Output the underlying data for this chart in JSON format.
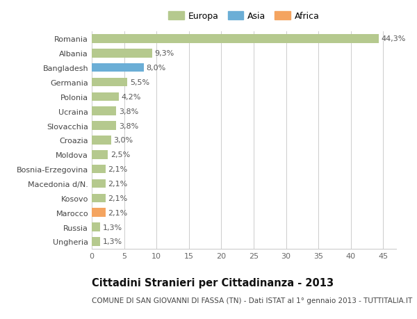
{
  "countries": [
    "Romania",
    "Albania",
    "Bangladesh",
    "Germania",
    "Polonia",
    "Ucraina",
    "Slovacchia",
    "Croazia",
    "Moldova",
    "Bosnia-Erzegovina",
    "Macedonia d/N.",
    "Kosovo",
    "Marocco",
    "Russia",
    "Ungheria"
  ],
  "values": [
    44.3,
    9.3,
    8.0,
    5.5,
    4.2,
    3.8,
    3.8,
    3.0,
    2.5,
    2.1,
    2.1,
    2.1,
    2.1,
    1.3,
    1.3
  ],
  "labels": [
    "44,3%",
    "9,3%",
    "8,0%",
    "5,5%",
    "4,2%",
    "3,8%",
    "3,8%",
    "3,0%",
    "2,5%",
    "2,1%",
    "2,1%",
    "2,1%",
    "2,1%",
    "1,3%",
    "1,3%"
  ],
  "colors": [
    "#b5c98e",
    "#b5c98e",
    "#6baed6",
    "#b5c98e",
    "#b5c98e",
    "#b5c98e",
    "#b5c98e",
    "#b5c98e",
    "#b5c98e",
    "#b5c98e",
    "#b5c98e",
    "#b5c98e",
    "#f4a460",
    "#b5c98e",
    "#b5c98e"
  ],
  "continent_colors": {
    "Europa": "#b5c98e",
    "Asia": "#6baed6",
    "Africa": "#f4a460"
  },
  "xlim": [
    0,
    47
  ],
  "xticks": [
    0,
    5,
    10,
    15,
    20,
    25,
    30,
    35,
    40,
    45
  ],
  "title": "Cittadini Stranieri per Cittadinanza - 2013",
  "subtitle": "COMUNE DI SAN GIOVANNI DI FASSA (TN) - Dati ISTAT al 1° gennaio 2013 - TUTTITALIA.IT",
  "bg_color": "#ffffff",
  "grid_color": "#cccccc",
  "bar_height": 0.6,
  "label_fontsize": 8.0,
  "tick_fontsize": 8.0,
  "title_fontsize": 10.5,
  "subtitle_fontsize": 7.5,
  "legend_fontsize": 9
}
